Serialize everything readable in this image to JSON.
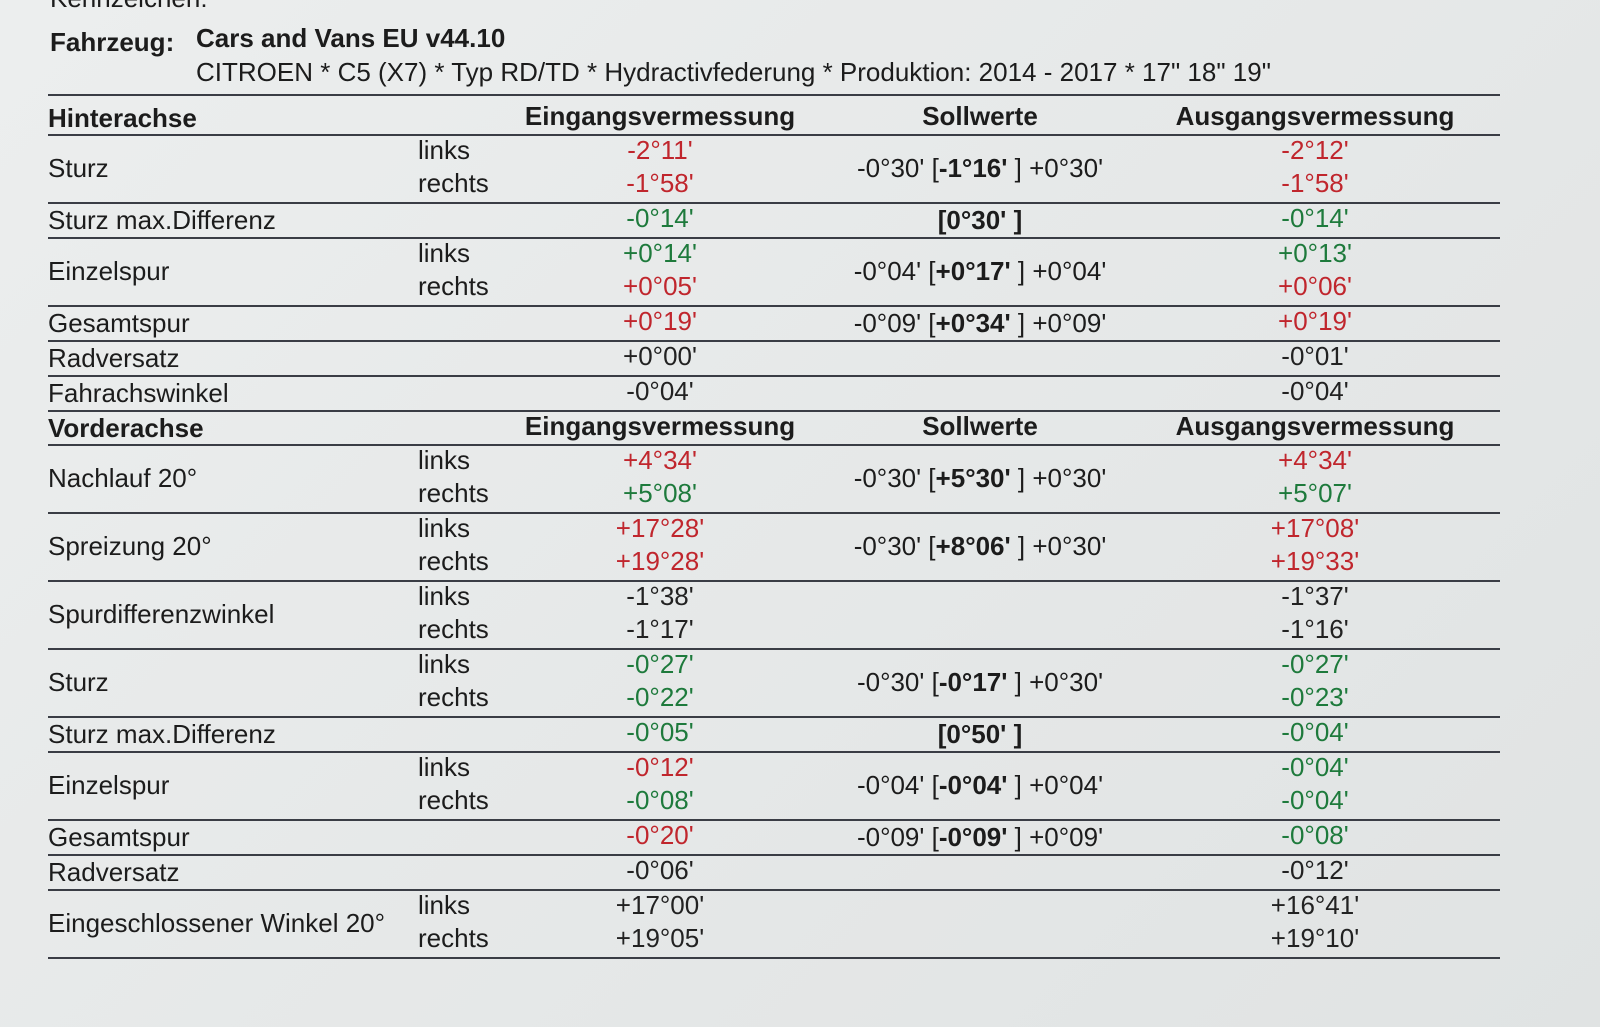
{
  "header": {
    "cut_text": "Kennzeichen:",
    "vehicle_label": "Fahrzeug:",
    "vehicle": "Cars and Vans EU v44.10",
    "subtitle": "CITROEN * C5 (X7) * Typ RD/TD * Hydractivfederung * Produktion: 2014 - 2017 * 17\" 18\" 19\""
  },
  "sections": [
    {
      "title": "Hinterachse",
      "columns": [
        "Eingangsvermessung",
        "Sollwerte",
        "Ausgangsvermessung"
      ],
      "rows": [
        {
          "label": "Sturz",
          "sides": [
            "links",
            "rechts"
          ],
          "input": [
            {
              "text": "-2°11'",
              "color": "#c0262d"
            },
            {
              "text": "-1°58'",
              "color": "#c0262d"
            }
          ],
          "target": [
            {
              "text": "-0°30' ["
            },
            {
              "text": "-1°16'",
              "bold": true
            },
            {
              "text": " ] +0°30'"
            }
          ],
          "output": [
            {
              "text": "-2°12'",
              "color": "#c0262d"
            },
            {
              "text": "-1°58'",
              "color": "#c0262d"
            }
          ]
        },
        {
          "label": "Sturz max.Differenz",
          "input": [
            {
              "text": "-0°14'",
              "color": "#1e7a3c"
            }
          ],
          "target": [
            {
              "text": "[0°30' ]",
              "bold": true
            }
          ],
          "output": [
            {
              "text": "-0°14'",
              "color": "#1e7a3c"
            }
          ]
        },
        {
          "label": "Einzelspur",
          "sides": [
            "links",
            "rechts"
          ],
          "input": [
            {
              "text": "+0°14'",
              "color": "#1e7a3c"
            },
            {
              "text": "+0°05'",
              "color": "#c0262d"
            }
          ],
          "target": [
            {
              "text": "-0°04' ["
            },
            {
              "text": "+0°17'",
              "bold": true
            },
            {
              "text": " ] +0°04'"
            }
          ],
          "output": [
            {
              "text": "+0°13'",
              "color": "#1e7a3c"
            },
            {
              "text": "+0°06'",
              "color": "#c0262d"
            }
          ]
        },
        {
          "label": "Gesamtspur",
          "input": [
            {
              "text": "+0°19'",
              "color": "#c0262d"
            }
          ],
          "target": [
            {
              "text": "-0°09' ["
            },
            {
              "text": "+0°34'",
              "bold": true
            },
            {
              "text": " ] +0°09'"
            }
          ],
          "output": [
            {
              "text": "+0°19'",
              "color": "#c0262d"
            }
          ]
        },
        {
          "label": "Radversatz",
          "input": [
            {
              "text": "+0°00'",
              "color": "#222222"
            }
          ],
          "output": [
            {
              "text": "-0°01'",
              "color": "#222222"
            }
          ]
        },
        {
          "label": "Fahrachswinkel",
          "input": [
            {
              "text": "-0°04'",
              "color": "#222222"
            }
          ],
          "output": [
            {
              "text": "-0°04'",
              "color": "#222222"
            }
          ]
        }
      ]
    },
    {
      "title": "Vorderachse",
      "columns": [
        "Eingangsvermessung",
        "Sollwerte",
        "Ausgangsvermessung"
      ],
      "rows": [
        {
          "label": "Nachlauf 20°",
          "sides": [
            "links",
            "rechts"
          ],
          "input": [
            {
              "text": "+4°34'",
              "color": "#c0262d"
            },
            {
              "text": "+5°08'",
              "color": "#1e7a3c"
            }
          ],
          "target": [
            {
              "text": "-0°30' ["
            },
            {
              "text": "+5°30'",
              "bold": true
            },
            {
              "text": " ] +0°30'"
            }
          ],
          "output": [
            {
              "text": "+4°34'",
              "color": "#c0262d"
            },
            {
              "text": "+5°07'",
              "color": "#1e7a3c"
            }
          ]
        },
        {
          "label": "Spreizung 20°",
          "sides": [
            "links",
            "rechts"
          ],
          "input": [
            {
              "text": "+17°28'",
              "color": "#c0262d"
            },
            {
              "text": "+19°28'",
              "color": "#c0262d"
            }
          ],
          "target": [
            {
              "text": "-0°30' ["
            },
            {
              "text": "+8°06'",
              "bold": true
            },
            {
              "text": " ] +0°30'"
            }
          ],
          "output": [
            {
              "text": "+17°08'",
              "color": "#c0262d"
            },
            {
              "text": "+19°33'",
              "color": "#c0262d"
            }
          ]
        },
        {
          "label": "Spurdifferenzwinkel",
          "sides": [
            "links",
            "rechts"
          ],
          "input": [
            {
              "text": "-1°38'",
              "color": "#222222"
            },
            {
              "text": "-1°17'",
              "color": "#222222"
            }
          ],
          "output": [
            {
              "text": "-1°37'",
              "color": "#222222"
            },
            {
              "text": "-1°16'",
              "color": "#222222"
            }
          ]
        },
        {
          "label": "Sturz",
          "sides": [
            "links",
            "rechts"
          ],
          "input": [
            {
              "text": "-0°27'",
              "color": "#1e7a3c"
            },
            {
              "text": "-0°22'",
              "color": "#1e7a3c"
            }
          ],
          "target": [
            {
              "text": "-0°30' ["
            },
            {
              "text": "-0°17'",
              "bold": true
            },
            {
              "text": " ] +0°30'"
            }
          ],
          "output": [
            {
              "text": "-0°27'",
              "color": "#1e7a3c"
            },
            {
              "text": "-0°23'",
              "color": "#1e7a3c"
            }
          ]
        },
        {
          "label": "Sturz max.Differenz",
          "input": [
            {
              "text": "-0°05'",
              "color": "#1e7a3c"
            }
          ],
          "target": [
            {
              "text": "[0°50' ]",
              "bold": true
            }
          ],
          "output": [
            {
              "text": "-0°04'",
              "color": "#1e7a3c"
            }
          ]
        },
        {
          "label": "Einzelspur",
          "sides": [
            "links",
            "rechts"
          ],
          "input": [
            {
              "text": "-0°12'",
              "color": "#c0262d"
            },
            {
              "text": "-0°08'",
              "color": "#1e7a3c"
            }
          ],
          "target": [
            {
              "text": "-0°04' ["
            },
            {
              "text": "-0°04'",
              "bold": true
            },
            {
              "text": " ] +0°04'"
            }
          ],
          "output": [
            {
              "text": "-0°04'",
              "color": "#1e7a3c"
            },
            {
              "text": "-0°04'",
              "color": "#1e7a3c"
            }
          ]
        },
        {
          "label": "Gesamtspur",
          "input": [
            {
              "text": "-0°20'",
              "color": "#c0262d"
            }
          ],
          "target": [
            {
              "text": "-0°09' ["
            },
            {
              "text": "-0°09'",
              "bold": true
            },
            {
              "text": " ] +0°09'"
            }
          ],
          "output": [
            {
              "text": "-0°08'",
              "color": "#1e7a3c"
            }
          ]
        },
        {
          "label": "Radversatz",
          "input": [
            {
              "text": "-0°06'",
              "color": "#222222"
            }
          ],
          "output": [
            {
              "text": "-0°12'",
              "color": "#222222"
            }
          ]
        },
        {
          "label": "Eingeschlossener Winkel 20°",
          "sides": [
            "links",
            "rechts"
          ],
          "input": [
            {
              "text": "+17°00'",
              "color": "#222222"
            },
            {
              "text": "+19°05'",
              "color": "#222222"
            }
          ],
          "output": [
            {
              "text": "+16°41'",
              "color": "#222222"
            },
            {
              "text": "+19°10'",
              "color": "#222222"
            }
          ]
        }
      ]
    }
  ]
}
